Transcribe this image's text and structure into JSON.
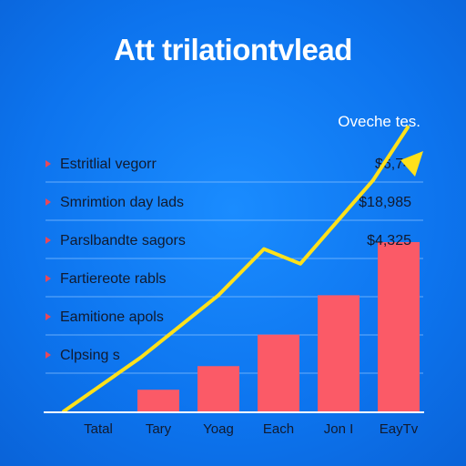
{
  "chart_data": {
    "type": "bar",
    "title": "Att trilationtvlead",
    "legend_title": "Oveche tes.",
    "categories": [
      "Tatal",
      "Tary",
      "Yoag",
      "Each",
      "Jon I",
      "EayTv"
    ],
    "values": [
      0,
      22,
      46,
      78,
      118,
      172
    ],
    "line_values": [
      0,
      55,
      118,
      165,
      150,
      235
    ],
    "ylim": [
      0,
      270
    ],
    "grid": true,
    "rows": [
      {
        "label": "Estritlial vegorr",
        "value": "$6,74"
      },
      {
        "label": "Smrimtion day lads",
        "value": "$18,985"
      },
      {
        "label": "Parslbandte sagors",
        "value": "$4,325"
      },
      {
        "label": "Fartiereote rabls",
        "value": ""
      },
      {
        "label": "Eamitione apols",
        "value": ""
      },
      {
        "label": "Clpsing s",
        "value": ""
      }
    ],
    "colors": {
      "background": "#0f7cf2",
      "bar": "#fb5a67",
      "line": "#ffe11a",
      "marker": "#e8485a",
      "grid": "#8fc4ff",
      "baseline": "#ffffff"
    }
  }
}
